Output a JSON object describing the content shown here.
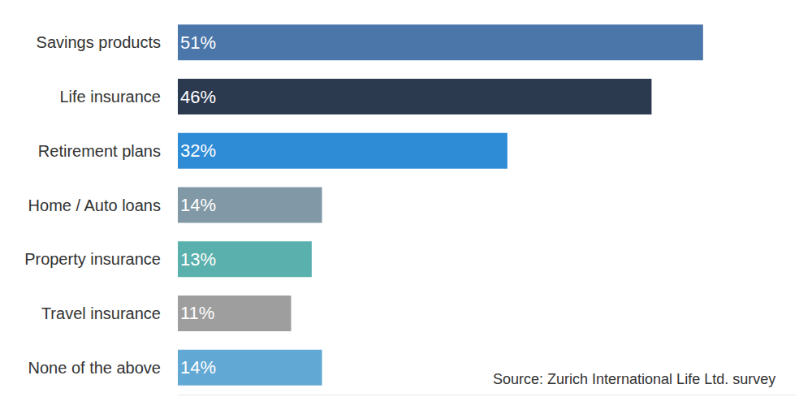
{
  "chart_data": {
    "type": "bar",
    "orientation": "horizontal",
    "categories": [
      "Savings products",
      "Life insurance",
      "Retirement plans",
      "Home / Auto loans",
      "Property insurance",
      "Travel insurance",
      "None of the above"
    ],
    "values": [
      51,
      46,
      32,
      14,
      13,
      11,
      14
    ],
    "value_labels": [
      "51%",
      "46%",
      "32%",
      "14%",
      "13%",
      "11%",
      "14%"
    ],
    "colors": [
      "#4a76aa",
      "#2c3a50",
      "#2e8bd6",
      "#8199a6",
      "#5ab0ac",
      "#9e9e9e",
      "#62a8d4"
    ],
    "xlim": [
      0,
      60
    ],
    "xticks": [],
    "grid": false,
    "data_labels": true,
    "tick_labels": "y",
    "annotations": [
      {
        "text": "Source: Zurich International Life Ltd. survey"
      }
    ]
  }
}
